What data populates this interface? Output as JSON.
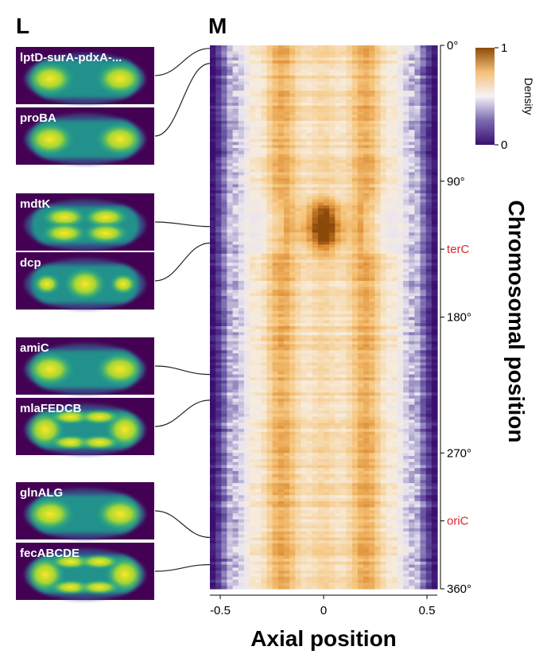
{
  "panels": {
    "left_letter": "L",
    "right_letter": "M"
  },
  "genes": [
    {
      "name": "lptD-surA-pdxA-...",
      "pattern": "two-foci",
      "chrom_deg": 2
    },
    {
      "name": "proBA",
      "pattern": "two-foci",
      "chrom_deg": 12
    },
    {
      "name": "mdtK",
      "pattern": "four-foci",
      "chrom_deg": 120
    },
    {
      "name": "dcp",
      "pattern": "center-focus",
      "chrom_deg": 131
    },
    {
      "name": "amiC",
      "pattern": "two-foci",
      "chrom_deg": 218
    },
    {
      "name": "mlaFEDCB",
      "pattern": "ring",
      "chrom_deg": 235
    },
    {
      "name": "glnALG",
      "pattern": "two-foci",
      "chrom_deg": 326
    },
    {
      "name": "fecABCDE",
      "pattern": "ring",
      "chrom_deg": 344
    }
  ],
  "chart_data": {
    "type": "heatmap",
    "xlabel": "Axial position",
    "ylabel": "Chromosomal position",
    "xlim": [
      -0.55,
      0.55
    ],
    "ylim": [
      0,
      360
    ],
    "x_ticks": [
      {
        "value": -0.5,
        "label": "-0.5"
      },
      {
        "value": 0,
        "label": "0"
      },
      {
        "value": 0.5,
        "label": "0.5"
      }
    ],
    "y_ticks": [
      {
        "value": 0,
        "label": "0°"
      },
      {
        "value": 90,
        "label": "90°"
      },
      {
        "value": 180,
        "label": "180°"
      },
      {
        "value": 270,
        "label": "270°"
      },
      {
        "value": 360,
        "label": "360°"
      }
    ],
    "markers": [
      {
        "value": 135,
        "label": "terC",
        "color": "#d9262c"
      },
      {
        "value": 315,
        "label": "oriC",
        "color": "#d9262c"
      }
    ],
    "colorbar": {
      "title": "Density",
      "min": 0,
      "max": 1,
      "min_label": "0",
      "max_label": "1",
      "colors": [
        "#3b0f70",
        "#7b6bb0",
        "#f5f3f7",
        "#f5c078",
        "#8c4a0a"
      ]
    },
    "bins": {
      "x": 40,
      "y": 180
    },
    "peak_region": {
      "chrom_from": 98,
      "chrom_to": 142,
      "axial_halfwidth": 0.06
    }
  }
}
